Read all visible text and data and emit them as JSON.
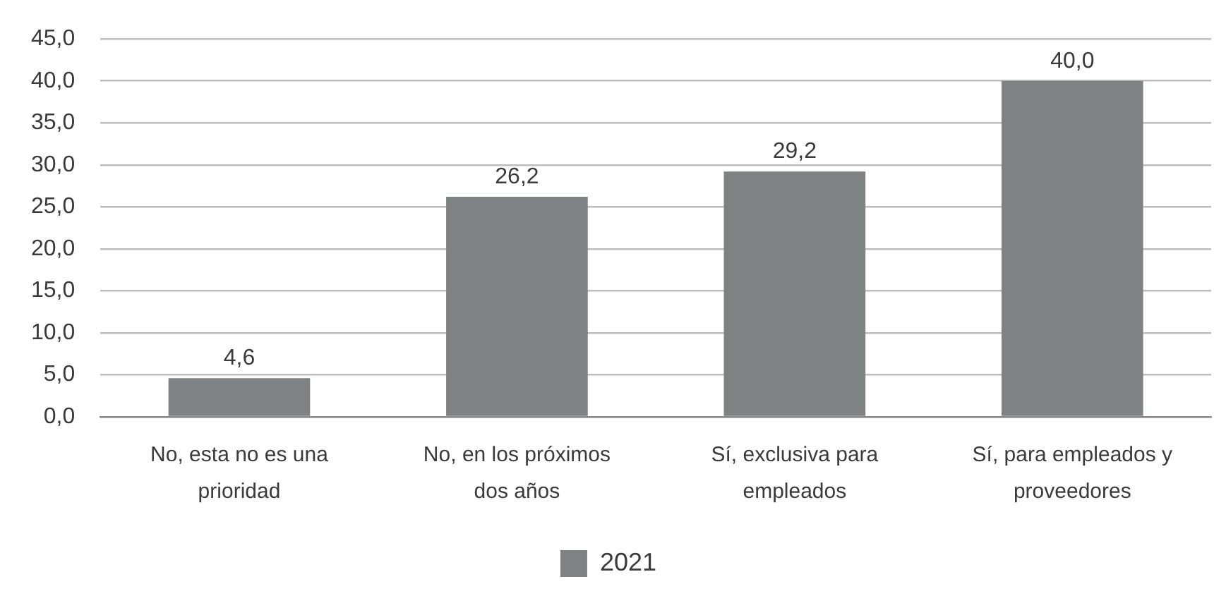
{
  "chart_data": {
    "type": "bar",
    "categories": [
      "No, esta no es una prioridad",
      "No, en los próximos dos años",
      "Sí, exclusiva para empleados",
      "Sí, para empleados y proveedores"
    ],
    "series": [
      {
        "name": "2021",
        "color": "#7f8283",
        "values": [
          4.6,
          26.2,
          29.2,
          40.0
        ],
        "value_labels": [
          "4,6",
          "26,2",
          "29,2",
          "40,0"
        ]
      }
    ],
    "ylim": [
      0,
      45
    ],
    "yticks": [
      {
        "value": 0,
        "label": "0,0"
      },
      {
        "value": 5,
        "label": "5,0"
      },
      {
        "value": 10,
        "label": "10,0"
      },
      {
        "value": 15,
        "label": "15,0"
      },
      {
        "value": 20,
        "label": "20,0"
      },
      {
        "value": 25,
        "label": "25,0"
      },
      {
        "value": 30,
        "label": "30,0"
      },
      {
        "value": 35,
        "label": "35,0"
      },
      {
        "value": 40,
        "label": "40,0"
      },
      {
        "value": 45,
        "label": "45,0"
      }
    ],
    "grid": "y",
    "legend": "bottom"
  }
}
